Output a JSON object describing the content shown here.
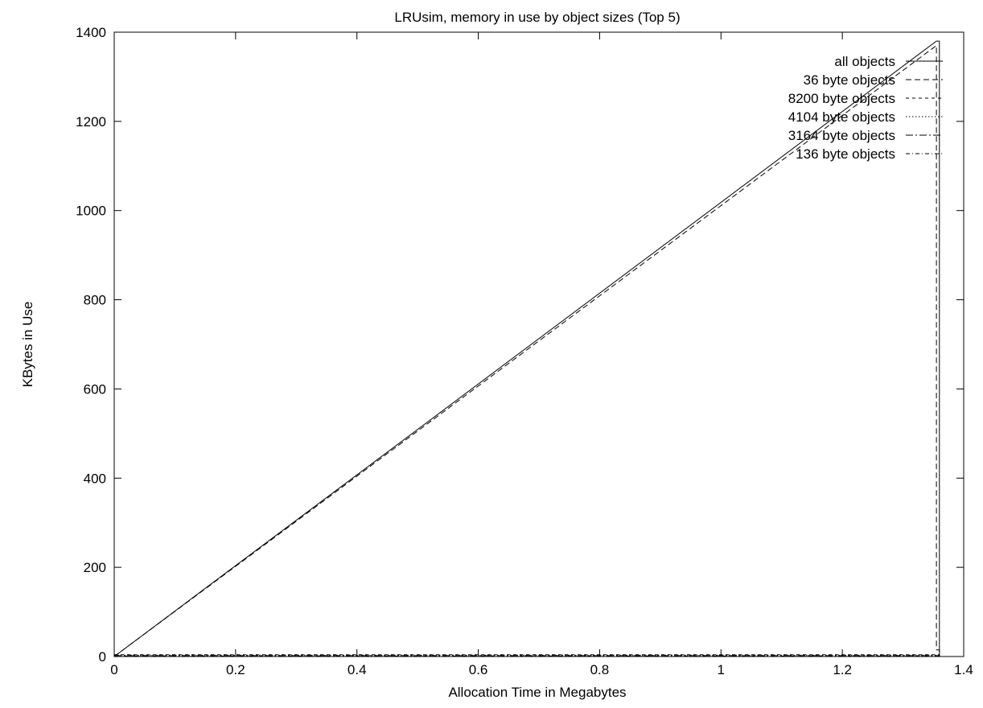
{
  "chart_data": {
    "type": "line",
    "title": "LRUsim, memory in use by object sizes (Top 5)",
    "xlabel": "Allocation Time in Megabytes",
    "ylabel": "KBytes in Use",
    "xlim": [
      0,
      1.4
    ],
    "ylim": [
      0,
      1400
    ],
    "xticks": [
      "0",
      "0.2",
      "0.4",
      "0.6",
      "0.8",
      "1",
      "1.2",
      "1.4"
    ],
    "yticks": [
      "0",
      "200",
      "400",
      "600",
      "800",
      "1000",
      "1200",
      "1400"
    ],
    "grid": false,
    "legend_position": "top-right",
    "series": [
      {
        "name": "all objects",
        "dash": "",
        "points": [
          [
            0,
            0
          ],
          [
            1.355,
            1380
          ],
          [
            1.36,
            1380
          ],
          [
            1.36,
            0
          ]
        ]
      },
      {
        "name": "36 byte objects",
        "dash": "7,4",
        "points": [
          [
            0,
            0
          ],
          [
            1.355,
            1370
          ],
          [
            1.355,
            15
          ],
          [
            1.36,
            15
          ],
          [
            1.36,
            0
          ]
        ]
      },
      {
        "name": "8200 byte objects",
        "dash": "4,4",
        "points": [
          [
            0,
            4
          ],
          [
            1.36,
            4
          ],
          [
            1.36,
            0
          ]
        ]
      },
      {
        "name": "4104 byte objects",
        "dash": "1.5,2.5",
        "points": [
          [
            0,
            3
          ],
          [
            1.36,
            3
          ],
          [
            1.36,
            0
          ]
        ]
      },
      {
        "name": "3164 byte objects",
        "dash": "9,3,2,3",
        "points": [
          [
            0,
            2
          ],
          [
            1.36,
            2
          ],
          [
            1.36,
            0
          ]
        ]
      },
      {
        "name": "136 byte objects",
        "dash": "5,3,1,3",
        "points": [
          [
            0,
            1
          ],
          [
            1.36,
            1
          ],
          [
            1.36,
            0
          ]
        ]
      }
    ]
  }
}
